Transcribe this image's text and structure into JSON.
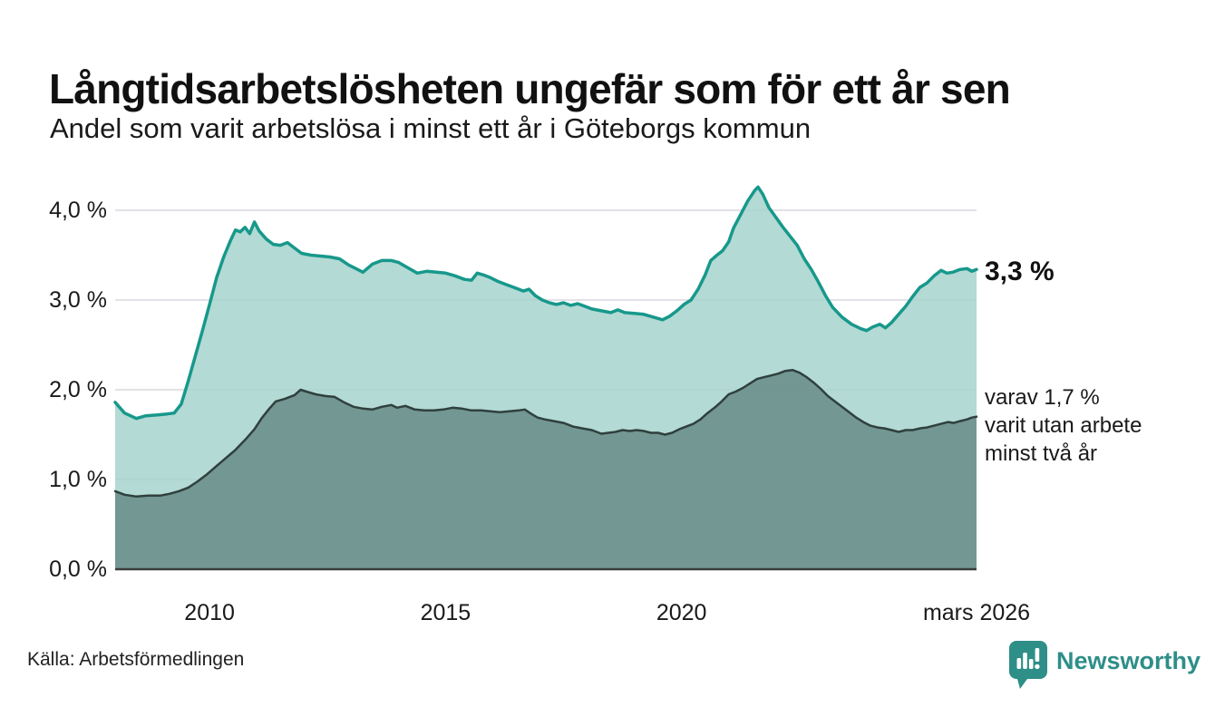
{
  "header": {
    "title": "Långtidsarbetslösheten ungefär som för ett år sen",
    "subtitle": "Andel som varit arbetslösa i minst ett år i Göteborgs kommun"
  },
  "annotations": {
    "latest_total": "3,3 %",
    "latest_two_year_lines": [
      "varav 1,7 %",
      "varit utan arbete",
      "minst två år"
    ]
  },
  "source": {
    "label": "Källa: Arbetsförmedlingen"
  },
  "branding": {
    "name": "Newsworthy",
    "color": "#2e8e88",
    "icon": "newsworthy-chart-bubble-icon"
  },
  "colors": {
    "grid": "#e2e2e7",
    "baseline": "#3c3c3c",
    "text": "#1a1a1a",
    "accent": "#17988b"
  },
  "chart_data": {
    "type": "area",
    "title": "Långtidsarbetslösheten ungefär som för ett år sen",
    "subtitle": "Andel som varit arbetslösa i minst ett år i Göteborgs kommun",
    "unit": "%",
    "grid": true,
    "legend_position": "none",
    "x_axis": {
      "range": [
        2008.0,
        2026.25
      ],
      "ticks": [
        {
          "value": 2010,
          "label": "2010"
        },
        {
          "value": 2015,
          "label": "2015"
        },
        {
          "value": 2020,
          "label": "2020"
        },
        {
          "value": 2026.25,
          "label": "mars 2026"
        }
      ]
    },
    "y_axis": {
      "range": [
        0,
        4.4
      ],
      "ticks": [
        {
          "value": 0,
          "label": "0,0 %"
        },
        {
          "value": 1,
          "label": "1,0 %"
        },
        {
          "value": 2,
          "label": "2,0 %"
        },
        {
          "value": 3,
          "label": "3,0 %"
        },
        {
          "value": 4,
          "label": "4,0 %"
        }
      ]
    },
    "series": [
      {
        "name": "Arbetslösa minst ett år",
        "end_label": "3,3 %",
        "end_value": 3.3,
        "color": "#17988b",
        "fill": "#a6d3cc",
        "fill_opacity": 0.85,
        "stroke_width": 3.5,
        "points": [
          [
            2008.0,
            1.86
          ],
          [
            2008.2,
            1.74
          ],
          [
            2008.45,
            1.68
          ],
          [
            2008.65,
            1.71
          ],
          [
            2008.9,
            1.72
          ],
          [
            2009.1,
            1.73
          ],
          [
            2009.25,
            1.74
          ],
          [
            2009.4,
            1.84
          ],
          [
            2009.55,
            2.1
          ],
          [
            2009.7,
            2.38
          ],
          [
            2009.85,
            2.66
          ],
          [
            2010.0,
            2.95
          ],
          [
            2010.15,
            3.25
          ],
          [
            2010.3,
            3.48
          ],
          [
            2010.45,
            3.67
          ],
          [
            2010.55,
            3.78
          ],
          [
            2010.65,
            3.76
          ],
          [
            2010.75,
            3.81
          ],
          [
            2010.85,
            3.74
          ],
          [
            2010.95,
            3.87
          ],
          [
            2011.05,
            3.77
          ],
          [
            2011.2,
            3.68
          ],
          [
            2011.35,
            3.62
          ],
          [
            2011.5,
            3.61
          ],
          [
            2011.65,
            3.64
          ],
          [
            2011.8,
            3.58
          ],
          [
            2011.95,
            3.52
          ],
          [
            2012.15,
            3.5
          ],
          [
            2012.35,
            3.49
          ],
          [
            2012.55,
            3.48
          ],
          [
            2012.75,
            3.46
          ],
          [
            2012.95,
            3.39
          ],
          [
            2013.1,
            3.35
          ],
          [
            2013.25,
            3.31
          ],
          [
            2013.45,
            3.4
          ],
          [
            2013.65,
            3.44
          ],
          [
            2013.85,
            3.44
          ],
          [
            2014.0,
            3.42
          ],
          [
            2014.2,
            3.36
          ],
          [
            2014.4,
            3.3
          ],
          [
            2014.6,
            3.32
          ],
          [
            2014.8,
            3.31
          ],
          [
            2015.0,
            3.3
          ],
          [
            2015.2,
            3.27
          ],
          [
            2015.4,
            3.23
          ],
          [
            2015.55,
            3.22
          ],
          [
            2015.67,
            3.3
          ],
          [
            2015.8,
            3.28
          ],
          [
            2015.95,
            3.25
          ],
          [
            2016.1,
            3.21
          ],
          [
            2016.3,
            3.17
          ],
          [
            2016.5,
            3.13
          ],
          [
            2016.65,
            3.1
          ],
          [
            2016.77,
            3.12
          ],
          [
            2016.9,
            3.05
          ],
          [
            2017.05,
            3.0
          ],
          [
            2017.2,
            2.97
          ],
          [
            2017.35,
            2.95
          ],
          [
            2017.5,
            2.97
          ],
          [
            2017.65,
            2.94
          ],
          [
            2017.8,
            2.96
          ],
          [
            2017.95,
            2.93
          ],
          [
            2018.1,
            2.9
          ],
          [
            2018.3,
            2.88
          ],
          [
            2018.5,
            2.86
          ],
          [
            2018.65,
            2.89
          ],
          [
            2018.8,
            2.86
          ],
          [
            2019.0,
            2.85
          ],
          [
            2019.2,
            2.84
          ],
          [
            2019.4,
            2.81
          ],
          [
            2019.6,
            2.78
          ],
          [
            2019.75,
            2.82
          ],
          [
            2019.9,
            2.88
          ],
          [
            2020.05,
            2.95
          ],
          [
            2020.2,
            3.0
          ],
          [
            2020.35,
            3.12
          ],
          [
            2020.5,
            3.28
          ],
          [
            2020.62,
            3.44
          ],
          [
            2020.75,
            3.5
          ],
          [
            2020.87,
            3.55
          ],
          [
            2021.0,
            3.65
          ],
          [
            2021.1,
            3.8
          ],
          [
            2021.25,
            3.95
          ],
          [
            2021.4,
            4.1
          ],
          [
            2021.55,
            4.22
          ],
          [
            2021.62,
            4.26
          ],
          [
            2021.72,
            4.18
          ],
          [
            2021.85,
            4.03
          ],
          [
            2022.0,
            3.92
          ],
          [
            2022.15,
            3.81
          ],
          [
            2022.3,
            3.71
          ],
          [
            2022.45,
            3.61
          ],
          [
            2022.6,
            3.46
          ],
          [
            2022.75,
            3.34
          ],
          [
            2022.9,
            3.2
          ],
          [
            2023.05,
            3.05
          ],
          [
            2023.2,
            2.92
          ],
          [
            2023.4,
            2.81
          ],
          [
            2023.6,
            2.73
          ],
          [
            2023.8,
            2.68
          ],
          [
            2023.92,
            2.66
          ],
          [
            2024.05,
            2.7
          ],
          [
            2024.2,
            2.73
          ],
          [
            2024.32,
            2.69
          ],
          [
            2024.45,
            2.75
          ],
          [
            2024.6,
            2.84
          ],
          [
            2024.75,
            2.93
          ],
          [
            2024.9,
            3.04
          ],
          [
            2025.05,
            3.14
          ],
          [
            2025.2,
            3.19
          ],
          [
            2025.35,
            3.27
          ],
          [
            2025.5,
            3.33
          ],
          [
            2025.62,
            3.3
          ],
          [
            2025.75,
            3.31
          ],
          [
            2025.9,
            3.34
          ],
          [
            2026.05,
            3.35
          ],
          [
            2026.15,
            3.32
          ],
          [
            2026.25,
            3.34
          ]
        ]
      },
      {
        "name": "Arbetslösa minst två år",
        "end_label": "varav 1,7 % varit utan arbete minst två år",
        "end_value": 1.7,
        "color": "#2f403d",
        "fill": "#6e918d",
        "fill_opacity": 0.93,
        "stroke_width": 2.5,
        "points": [
          [
            2008.0,
            0.87
          ],
          [
            2008.2,
            0.83
          ],
          [
            2008.45,
            0.81
          ],
          [
            2008.7,
            0.82
          ],
          [
            2008.95,
            0.82
          ],
          [
            2009.15,
            0.84
          ],
          [
            2009.35,
            0.87
          ],
          [
            2009.55,
            0.91
          ],
          [
            2009.75,
            0.98
          ],
          [
            2009.95,
            1.06
          ],
          [
            2010.15,
            1.15
          ],
          [
            2010.35,
            1.24
          ],
          [
            2010.55,
            1.33
          ],
          [
            2010.75,
            1.44
          ],
          [
            2010.95,
            1.56
          ],
          [
            2011.1,
            1.68
          ],
          [
            2011.25,
            1.78
          ],
          [
            2011.4,
            1.87
          ],
          [
            2011.6,
            1.9
          ],
          [
            2011.8,
            1.94
          ],
          [
            2011.93,
            2.0
          ],
          [
            2012.05,
            1.98
          ],
          [
            2012.25,
            1.95
          ],
          [
            2012.45,
            1.93
          ],
          [
            2012.65,
            1.92
          ],
          [
            2012.85,
            1.86
          ],
          [
            2013.05,
            1.81
          ],
          [
            2013.25,
            1.79
          ],
          [
            2013.45,
            1.78
          ],
          [
            2013.65,
            1.81
          ],
          [
            2013.85,
            1.83
          ],
          [
            2013.97,
            1.8
          ],
          [
            2014.15,
            1.82
          ],
          [
            2014.35,
            1.78
          ],
          [
            2014.55,
            1.77
          ],
          [
            2014.75,
            1.77
          ],
          [
            2014.95,
            1.78
          ],
          [
            2015.15,
            1.8
          ],
          [
            2015.35,
            1.79
          ],
          [
            2015.55,
            1.77
          ],
          [
            2015.75,
            1.77
          ],
          [
            2015.95,
            1.76
          ],
          [
            2016.15,
            1.75
          ],
          [
            2016.35,
            1.76
          ],
          [
            2016.55,
            1.77
          ],
          [
            2016.68,
            1.78
          ],
          [
            2016.82,
            1.73
          ],
          [
            2016.95,
            1.69
          ],
          [
            2017.1,
            1.67
          ],
          [
            2017.3,
            1.65
          ],
          [
            2017.5,
            1.63
          ],
          [
            2017.7,
            1.59
          ],
          [
            2017.9,
            1.57
          ],
          [
            2018.1,
            1.55
          ],
          [
            2018.3,
            1.51
          ],
          [
            2018.45,
            1.52
          ],
          [
            2018.6,
            1.53
          ],
          [
            2018.75,
            1.55
          ],
          [
            2018.9,
            1.54
          ],
          [
            2019.05,
            1.55
          ],
          [
            2019.2,
            1.54
          ],
          [
            2019.35,
            1.52
          ],
          [
            2019.5,
            1.52
          ],
          [
            2019.65,
            1.5
          ],
          [
            2019.8,
            1.52
          ],
          [
            2019.95,
            1.56
          ],
          [
            2020.1,
            1.59
          ],
          [
            2020.25,
            1.62
          ],
          [
            2020.4,
            1.67
          ],
          [
            2020.55,
            1.74
          ],
          [
            2020.7,
            1.8
          ],
          [
            2020.85,
            1.87
          ],
          [
            2021.0,
            1.95
          ],
          [
            2021.15,
            1.98
          ],
          [
            2021.3,
            2.02
          ],
          [
            2021.45,
            2.07
          ],
          [
            2021.6,
            2.12
          ],
          [
            2021.75,
            2.14
          ],
          [
            2021.9,
            2.16
          ],
          [
            2022.05,
            2.18
          ],
          [
            2022.2,
            2.21
          ],
          [
            2022.35,
            2.22
          ],
          [
            2022.5,
            2.19
          ],
          [
            2022.65,
            2.14
          ],
          [
            2022.8,
            2.08
          ],
          [
            2022.95,
            2.01
          ],
          [
            2023.1,
            1.93
          ],
          [
            2023.25,
            1.87
          ],
          [
            2023.4,
            1.81
          ],
          [
            2023.55,
            1.75
          ],
          [
            2023.7,
            1.69
          ],
          [
            2023.85,
            1.64
          ],
          [
            2024.0,
            1.6
          ],
          [
            2024.15,
            1.58
          ],
          [
            2024.3,
            1.57
          ],
          [
            2024.45,
            1.55
          ],
          [
            2024.6,
            1.53
          ],
          [
            2024.75,
            1.55
          ],
          [
            2024.9,
            1.55
          ],
          [
            2025.05,
            1.57
          ],
          [
            2025.2,
            1.58
          ],
          [
            2025.35,
            1.6
          ],
          [
            2025.5,
            1.62
          ],
          [
            2025.65,
            1.64
          ],
          [
            2025.77,
            1.63
          ],
          [
            2025.9,
            1.65
          ],
          [
            2026.05,
            1.67
          ],
          [
            2026.15,
            1.69
          ],
          [
            2026.25,
            1.7
          ]
        ]
      }
    ]
  }
}
